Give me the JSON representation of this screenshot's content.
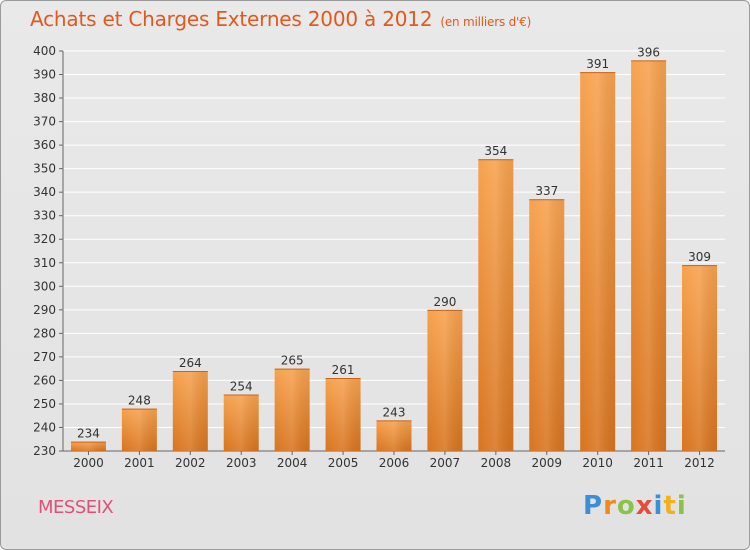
{
  "title": "Achats et Charges Externes 2000 à 2012",
  "subtitle": "(en milliers d'€)",
  "commune": "MESSEIX",
  "logo": "Proxiti",
  "colors": {
    "bar_top": "#f7a24e",
    "bar_bottom": "#d8741e",
    "title": "#e05a1f",
    "commune": "#e0507a"
  },
  "chart_data": {
    "type": "bar",
    "categories": [
      "2000",
      "2001",
      "2002",
      "2003",
      "2004",
      "2005",
      "2006",
      "2007",
      "2008",
      "2009",
      "2010",
      "2011",
      "2012"
    ],
    "values": [
      234,
      248,
      264,
      254,
      265,
      261,
      243,
      290,
      354,
      337,
      391,
      396,
      309
    ],
    "ylim": [
      230,
      400
    ],
    "yticks": [
      230,
      240,
      250,
      260,
      270,
      280,
      290,
      300,
      310,
      320,
      330,
      340,
      350,
      360,
      370,
      380,
      390,
      400
    ],
    "grid": true
  }
}
